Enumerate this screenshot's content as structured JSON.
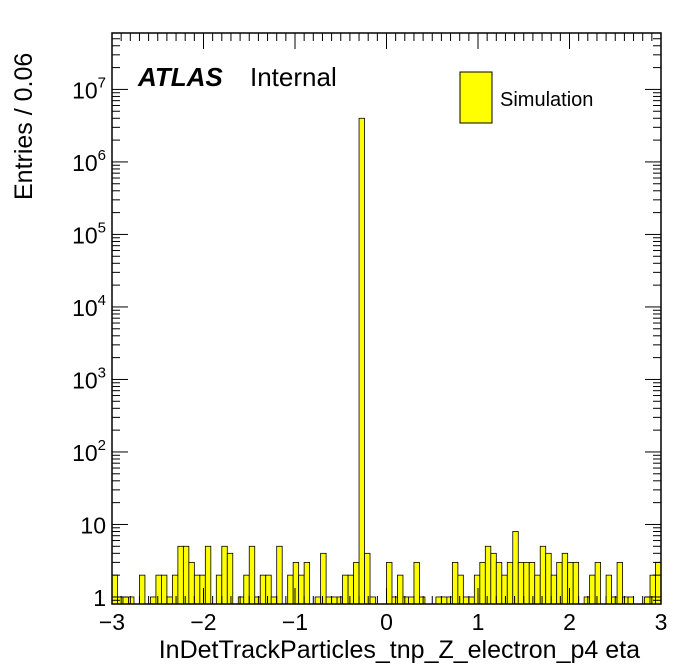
{
  "chart_data": {
    "type": "bar",
    "title": "",
    "xlabel": "InDetTrackParticles_tnp_Z_electron_p4 eta",
    "ylabel": "Entries / 0.06",
    "xlim": [
      -3,
      3
    ],
    "ylim": [
      0.8,
      60000000
    ],
    "yscale": "log",
    "bin_width": 0.06,
    "grid": false,
    "legend_position": "top-right",
    "fill_color": "#ffff00",
    "edge_color": "#000000",
    "x_ticks": [
      "−3",
      "−2",
      "−1",
      "0",
      "1",
      "2",
      "3"
    ],
    "x_tick_values": [
      -3,
      -2,
      -1,
      0,
      1,
      2,
      3
    ],
    "y_ticks": [
      {
        "base": "1",
        "exp": ""
      },
      {
        "base": "10",
        "exp": ""
      },
      {
        "base": "10",
        "exp": "2"
      },
      {
        "base": "10",
        "exp": "3"
      },
      {
        "base": "10",
        "exp": "4"
      },
      {
        "base": "10",
        "exp": "5"
      },
      {
        "base": "10",
        "exp": "6"
      },
      {
        "base": "10",
        "exp": "7"
      }
    ],
    "y_tick_values": [
      1,
      10,
      100,
      1000,
      10000,
      100000,
      1000000,
      10000000
    ],
    "annotation": {
      "atlas": "ATLAS",
      "label": "Internal"
    },
    "series": [
      {
        "name": "Simulation",
        "values": [
          2,
          1,
          1,
          1,
          0,
          2,
          0,
          1,
          2,
          2,
          1,
          2,
          5,
          5,
          3,
          2,
          2,
          5,
          0,
          2,
          5,
          4,
          0,
          1,
          2,
          5,
          1,
          2,
          2,
          1,
          5,
          0,
          2,
          3,
          2,
          3,
          0,
          1,
          4,
          1,
          1,
          1,
          2,
          2,
          3,
          4000000,
          4,
          1,
          0,
          0,
          3,
          1,
          2,
          1,
          1,
          3,
          1,
          0,
          0,
          1,
          1,
          1,
          3,
          2,
          1,
          1,
          2,
          3,
          5,
          4,
          3,
          2,
          3,
          8,
          3,
          3,
          3,
          2,
          5,
          4,
          2,
          3,
          4,
          3,
          3,
          0,
          1,
          2,
          3,
          0,
          2,
          1,
          3,
          1,
          1,
          0,
          0,
          1,
          2,
          3
        ]
      }
    ]
  }
}
